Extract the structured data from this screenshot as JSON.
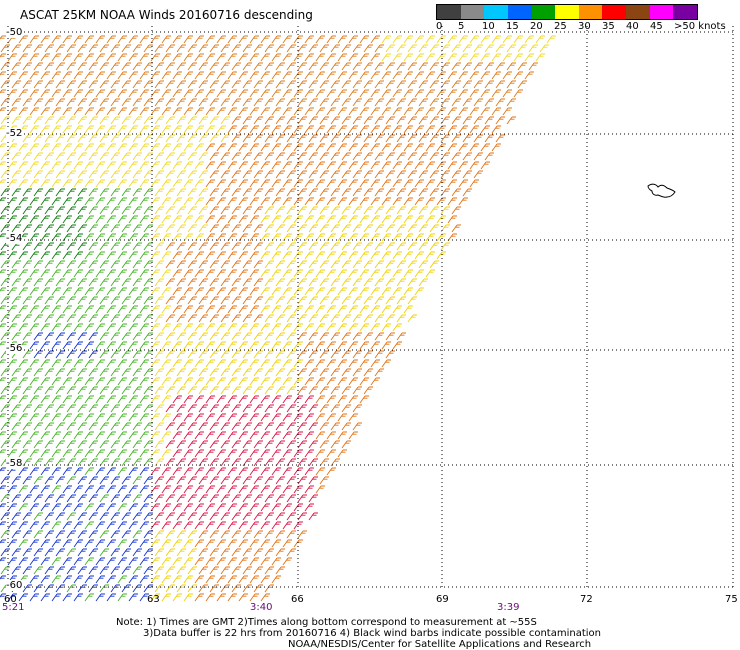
{
  "title": "ASCAT 25KM NOAA Winds 20160716 descending",
  "legend": {
    "labels": [
      "0",
      "5",
      "10",
      "15",
      "20",
      "25",
      "30",
      "35",
      "40",
      "45",
      ">50 knots"
    ],
    "colors": [
      "#404040",
      "#8a8a8a",
      "#00c8ff",
      "#0064ff",
      "#00a000",
      "#ffff00",
      "#ff9000",
      "#ff0000",
      "#8b4513",
      "#ff00ff",
      "#7800a0"
    ]
  },
  "latitude_labels": [
    "-50",
    "-52",
    "-54",
    "-56",
    "-58",
    "-60"
  ],
  "longitude_labels": [
    "60",
    "63",
    "66",
    "69",
    "72",
    "75"
  ],
  "time_labels": [
    "5:21",
    "3:40",
    "3:39"
  ],
  "notes": [
    "Note: 1) Times are GMT 2)Times along bottom correspond to measurement at ~55S",
    "3)Data buffer is 22 hrs from 20160716 4) Black wind barbs indicate possible contamination",
    "NOAA/NESDIS/Center for Satellite Applications and Research"
  ],
  "wind_regions": [
    {
      "name": "north-orange",
      "color": "#d97a18"
    },
    {
      "name": "north-yellow",
      "color": "#f0d820"
    },
    {
      "name": "central-orange",
      "color": "#e07010"
    },
    {
      "name": "west-green",
      "color": "#40b020"
    },
    {
      "name": "west-dark-green",
      "color": "#0a7a0a"
    },
    {
      "name": "west-blue",
      "color": "#1030d0"
    },
    {
      "name": "south-red",
      "color": "#d81040"
    },
    {
      "name": "east-yellow",
      "color": "#f0d000"
    }
  ]
}
